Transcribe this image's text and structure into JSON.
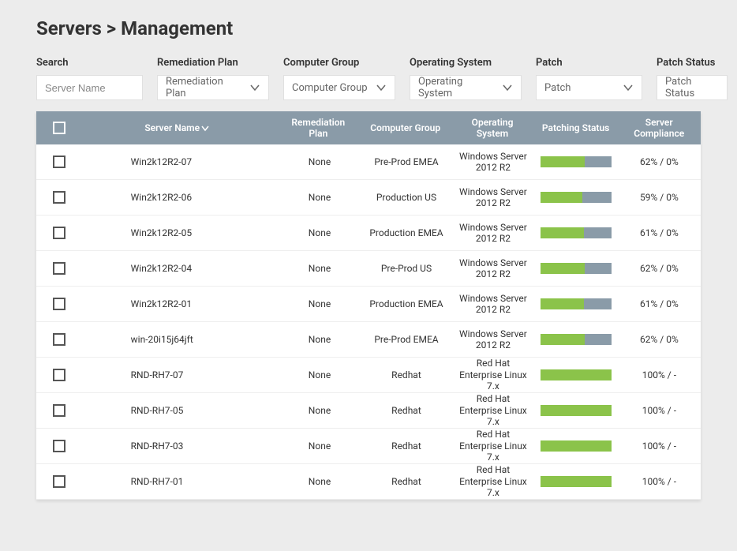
{
  "title": "Servers > Management",
  "filters": {
    "search": {
      "label": "Search",
      "placeholder": "Server Name"
    },
    "remediation": {
      "label": "Remediation Plan",
      "placeholder": "Remediation Plan"
    },
    "group": {
      "label": "Computer Group",
      "placeholder": "Computer Group"
    },
    "os": {
      "label": "Operating System",
      "placeholder": "Operating System"
    },
    "patch": {
      "label": "Patch",
      "placeholder": "Patch"
    },
    "status": {
      "label": "Patch Status",
      "placeholder": "Patch Status"
    }
  },
  "columns": {
    "name": "Server Name",
    "rem": "Remediation Plan",
    "group": "Computer Group",
    "os": "Operating System",
    "patch": "Patching Status",
    "comp": "Server Compliance"
  },
  "colors": {
    "header_bg": "#8a9ba8",
    "progress_fill": "#8bc34a",
    "progress_bg": "#8a9ba8",
    "page_bg": "#ececec"
  },
  "rows": [
    {
      "name": "Win2k12R2-07",
      "rem": "None",
      "group": "Pre-Prod EMEA",
      "os": "Windows Server 2012 R2",
      "progress": 62,
      "comp": "62% / 0%"
    },
    {
      "name": "Win2k12R2-06",
      "rem": "None",
      "group": "Production US",
      "os": "Windows Server 2012 R2",
      "progress": 59,
      "comp": "59% / 0%"
    },
    {
      "name": "Win2k12R2-05",
      "rem": "None",
      "group": "Production EMEA",
      "os": "Windows Server 2012 R2",
      "progress": 61,
      "comp": "61% / 0%"
    },
    {
      "name": "Win2k12R2-04",
      "rem": "None",
      "group": "Pre-Prod US",
      "os": "Windows Server 2012 R2",
      "progress": 62,
      "comp": "62% / 0%"
    },
    {
      "name": "Win2k12R2-01",
      "rem": "None",
      "group": "Production EMEA",
      "os": "Windows Server 2012 R2",
      "progress": 61,
      "comp": "61% / 0%"
    },
    {
      "name": "win-20i15j64jft",
      "rem": "None",
      "group": "Pre-Prod EMEA",
      "os": "Windows Server 2012 R2",
      "progress": 62,
      "comp": "62% / 0%"
    },
    {
      "name": "RND-RH7-07",
      "rem": "None",
      "group": "Redhat",
      "os": "Red Hat Enterprise Linux 7.x",
      "progress": 100,
      "comp": "100% / -"
    },
    {
      "name": "RND-RH7-05",
      "rem": "None",
      "group": "Redhat",
      "os": "Red Hat Enterprise Linux 7.x",
      "progress": 100,
      "comp": "100% / -"
    },
    {
      "name": "RND-RH7-03",
      "rem": "None",
      "group": "Redhat",
      "os": "Red Hat Enterprise Linux 7.x",
      "progress": 100,
      "comp": "100% / -"
    },
    {
      "name": "RND-RH7-01",
      "rem": "None",
      "group": "Redhat",
      "os": "Red Hat Enterprise Linux 7.x",
      "progress": 100,
      "comp": "100% / -"
    }
  ]
}
